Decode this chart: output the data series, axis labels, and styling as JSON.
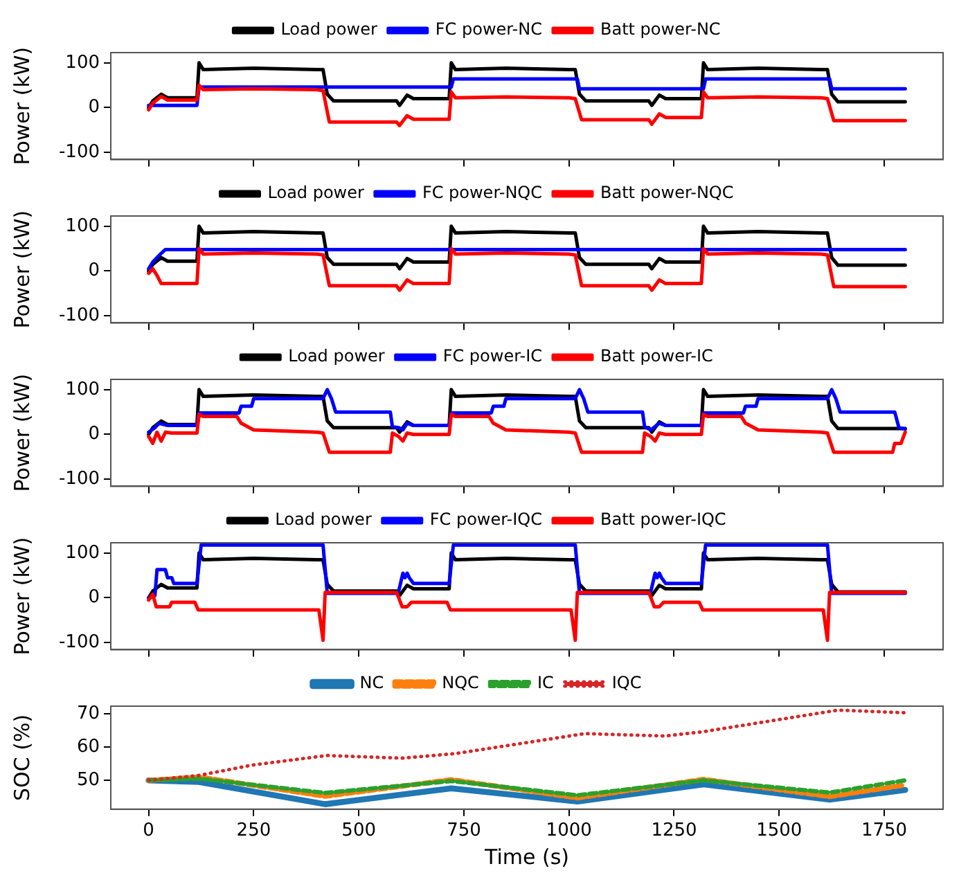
{
  "chart_data": [
    {
      "type": "line",
      "ylabel": "Power (kW)",
      "xlim": [
        -90,
        1890
      ],
      "xticks": [
        0,
        250,
        500,
        750,
        1000,
        1250,
        1500,
        1750
      ],
      "ylim": [
        -116,
        123
      ],
      "yticks": [
        -100,
        0,
        100
      ],
      "tick_labels": "y",
      "legend": "top",
      "series": [
        {
          "name": "Load power",
          "color": "#000000",
          "x": [
            0,
            10,
            30,
            45,
            115,
            120,
            130,
            250,
            400,
            415,
            425,
            440,
            590,
            597,
            615,
            630,
            715,
            720,
            730,
            850,
            1000,
            1015,
            1025,
            1040,
            1190,
            1197,
            1215,
            1230,
            1315,
            1320,
            1330,
            1450,
            1600,
            1615,
            1625,
            1640,
            1800
          ],
          "values": [
            0,
            15,
            30,
            22,
            22,
            100,
            85,
            88,
            85,
            85,
            30,
            15,
            15,
            5,
            28,
            20,
            20,
            100,
            85,
            88,
            85,
            85,
            30,
            15,
            15,
            5,
            28,
            20,
            20,
            100,
            85,
            88,
            85,
            85,
            30,
            13,
            13
          ]
        },
        {
          "name": "FC power-NC",
          "color": "#0000ff",
          "x": [
            0,
            115,
            120,
            720,
            725,
            1020,
            1025,
            1320,
            1325,
            1620,
            1625,
            1800
          ],
          "values": [
            5,
            5,
            46,
            46,
            64,
            64,
            42,
            42,
            64,
            64,
            42,
            42
          ]
        },
        {
          "name": "Batt power-NC",
          "color": "#ff0000",
          "x": [
            0,
            10,
            30,
            45,
            115,
            120,
            130,
            250,
            400,
            415,
            430,
            590,
            597,
            615,
            630,
            715,
            720,
            730,
            850,
            1000,
            1015,
            1030,
            1190,
            1197,
            1215,
            1230,
            1315,
            1320,
            1330,
            1450,
            1600,
            1615,
            1630,
            1800
          ],
          "values": [
            -5,
            10,
            25,
            17,
            17,
            50,
            40,
            42,
            40,
            38,
            -32,
            -32,
            -40,
            -18,
            -26,
            -26,
            35,
            22,
            24,
            22,
            20,
            -27,
            -27,
            -37,
            -14,
            -22,
            -22,
            35,
            22,
            24,
            22,
            20,
            -29,
            -29
          ]
        }
      ]
    },
    {
      "type": "line",
      "ylabel": "Power (kW)",
      "xlim": [
        -90,
        1890
      ],
      "xticks": [
        0,
        250,
        500,
        750,
        1000,
        1250,
        1500,
        1750
      ],
      "ylim": [
        -116,
        123
      ],
      "yticks": [
        -100,
        0,
        100
      ],
      "tick_labels": "y",
      "legend": "top",
      "series": [
        {
          "name": "Load power",
          "color": "#000000",
          "x": [
            0,
            10,
            30,
            45,
            115,
            120,
            130,
            250,
            400,
            415,
            425,
            440,
            590,
            597,
            615,
            630,
            715,
            720,
            730,
            850,
            1000,
            1015,
            1025,
            1040,
            1190,
            1197,
            1215,
            1230,
            1315,
            1320,
            1330,
            1450,
            1600,
            1615,
            1625,
            1640,
            1800
          ],
          "values": [
            0,
            15,
            30,
            22,
            22,
            100,
            85,
            88,
            85,
            85,
            30,
            15,
            15,
            5,
            28,
            20,
            20,
            100,
            85,
            88,
            85,
            85,
            30,
            15,
            15,
            5,
            28,
            20,
            20,
            100,
            85,
            88,
            85,
            85,
            30,
            13,
            13
          ]
        },
        {
          "name": "FC power-NQC",
          "color": "#0000ff",
          "x": [
            0,
            10,
            25,
            40,
            1800
          ],
          "values": [
            5,
            20,
            35,
            48,
            48
          ]
        },
        {
          "name": "Batt power-NQC",
          "color": "#ff0000",
          "x": [
            0,
            10,
            20,
            30,
            115,
            120,
            130,
            250,
            400,
            415,
            430,
            590,
            597,
            615,
            630,
            715,
            720,
            730,
            850,
            1000,
            1015,
            1030,
            1190,
            1197,
            1215,
            1230,
            1315,
            1320,
            1330,
            1450,
            1600,
            1615,
            1630,
            1800
          ],
          "values": [
            -5,
            5,
            -10,
            -28,
            -28,
            50,
            38,
            40,
            38,
            36,
            -33,
            -33,
            -43,
            -20,
            -28,
            -28,
            50,
            38,
            40,
            38,
            36,
            -33,
            -33,
            -43,
            -20,
            -28,
            -28,
            50,
            38,
            40,
            38,
            36,
            -35,
            -35
          ]
        }
      ]
    },
    {
      "type": "line",
      "ylabel": "Power (kW)",
      "xlim": [
        -90,
        1890
      ],
      "xticks": [
        0,
        250,
        500,
        750,
        1000,
        1250,
        1500,
        1750
      ],
      "ylim": [
        -116,
        123
      ],
      "yticks": [
        -100,
        0,
        100
      ],
      "tick_labels": "y",
      "legend": "top",
      "series": [
        {
          "name": "Load power",
          "color": "#000000",
          "x": [
            0,
            10,
            30,
            45,
            115,
            120,
            130,
            250,
            400,
            415,
            425,
            440,
            590,
            597,
            615,
            630,
            715,
            720,
            730,
            850,
            1000,
            1015,
            1025,
            1040,
            1190,
            1197,
            1215,
            1230,
            1315,
            1320,
            1330,
            1450,
            1600,
            1615,
            1625,
            1640,
            1800
          ],
          "values": [
            0,
            15,
            30,
            22,
            22,
            100,
            85,
            88,
            85,
            85,
            30,
            15,
            15,
            5,
            28,
            20,
            20,
            100,
            85,
            88,
            85,
            85,
            30,
            15,
            15,
            5,
            28,
            20,
            20,
            100,
            85,
            88,
            85,
            85,
            30,
            13,
            13
          ]
        },
        {
          "name": "FC power-IC",
          "color": "#0000ff",
          "x": [
            0,
            15,
            25,
            45,
            115,
            120,
            215,
            220,
            245,
            250,
            415,
            425,
            435,
            445,
            575,
            580,
            595,
            605,
            615,
            630,
            715,
            720,
            815,
            820,
            845,
            850,
            1015,
            1025,
            1035,
            1045,
            1175,
            1180,
            1195,
            1215,
            1230,
            1315,
            1320,
            1415,
            1420,
            1445,
            1450,
            1615,
            1625,
            1635,
            1645,
            1775,
            1785,
            1800
          ],
          "values": [
            5,
            15,
            25,
            20,
            20,
            48,
            48,
            63,
            63,
            80,
            80,
            100,
            80,
            50,
            50,
            17,
            15,
            10,
            25,
            20,
            20,
            48,
            48,
            63,
            63,
            80,
            80,
            100,
            80,
            50,
            50,
            17,
            10,
            25,
            20,
            20,
            48,
            48,
            63,
            63,
            80,
            80,
            100,
            80,
            50,
            50,
            15,
            12
          ]
        },
        {
          "name": "Batt power-IC",
          "color": "#ff0000",
          "x": [
            0,
            10,
            20,
            30,
            40,
            55,
            115,
            120,
            130,
            210,
            220,
            250,
            400,
            415,
            430,
            575,
            580,
            595,
            605,
            615,
            630,
            715,
            720,
            730,
            810,
            820,
            850,
            1000,
            1015,
            1030,
            1175,
            1180,
            1195,
            1205,
            1215,
            1230,
            1315,
            1320,
            1330,
            1410,
            1420,
            1450,
            1600,
            1615,
            1630,
            1770,
            1775,
            1790,
            1800
          ],
          "values": [
            -5,
            -20,
            5,
            -15,
            5,
            3,
            3,
            45,
            40,
            40,
            25,
            10,
            5,
            3,
            -40,
            -40,
            3,
            -5,
            -15,
            3,
            0,
            0,
            45,
            40,
            40,
            25,
            10,
            5,
            3,
            -40,
            -40,
            3,
            -5,
            -15,
            3,
            0,
            0,
            45,
            40,
            40,
            25,
            10,
            5,
            3,
            -40,
            -40,
            -20,
            -20,
            5
          ]
        }
      ]
    },
    {
      "type": "line",
      "ylabel": "Power (kW)",
      "xlim": [
        -90,
        1890
      ],
      "xticks": [
        0,
        250,
        500,
        750,
        1000,
        1250,
        1500,
        1750
      ],
      "ylim": [
        -116,
        123
      ],
      "yticks": [
        -100,
        0,
        100
      ],
      "tick_labels": "y",
      "legend": "top",
      "series": [
        {
          "name": "Load power",
          "color": "#000000",
          "x": [
            0,
            10,
            30,
            45,
            115,
            120,
            130,
            250,
            400,
            415,
            425,
            440,
            590,
            597,
            615,
            630,
            715,
            720,
            730,
            850,
            1000,
            1015,
            1025,
            1040,
            1190,
            1197,
            1215,
            1230,
            1315,
            1320,
            1330,
            1450,
            1600,
            1615,
            1625,
            1640,
            1800
          ],
          "values": [
            0,
            15,
            30,
            22,
            22,
            100,
            85,
            88,
            85,
            85,
            30,
            15,
            15,
            5,
            28,
            20,
            20,
            100,
            85,
            88,
            85,
            85,
            30,
            15,
            15,
            5,
            28,
            20,
            20,
            100,
            85,
            88,
            85,
            85,
            30,
            13,
            13
          ]
        },
        {
          "name": "FC power-IQC",
          "color": "#0000ff",
          "x": [
            0,
            15,
            20,
            40,
            45,
            55,
            60,
            115,
            125,
            415,
            425,
            590,
            595,
            605,
            610,
            615,
            620,
            630,
            715,
            725,
            1015,
            1025,
            1190,
            1195,
            1205,
            1210,
            1215,
            1220,
            1230,
            1315,
            1325,
            1615,
            1625,
            1800
          ],
          "values": [
            0,
            5,
            63,
            63,
            45,
            45,
            32,
            32,
            118,
            118,
            10,
            10,
            15,
            55,
            45,
            55,
            45,
            32,
            32,
            118,
            118,
            10,
            10,
            15,
            55,
            45,
            55,
            45,
            32,
            32,
            118,
            118,
            10,
            10
          ]
        },
        {
          "name": "Batt power-IQC",
          "color": "#ff0000",
          "x": [
            0,
            10,
            18,
            50,
            55,
            110,
            118,
            405,
            415,
            420,
            590,
            597,
            603,
            615,
            625,
            710,
            718,
            1005,
            1015,
            1020,
            1190,
            1197,
            1203,
            1215,
            1225,
            1310,
            1318,
            1605,
            1615,
            1620,
            1800
          ],
          "values": [
            -5,
            8,
            -20,
            -20,
            -10,
            -10,
            -27,
            -27,
            -95,
            12,
            12,
            -5,
            -20,
            -20,
            -10,
            -10,
            -27,
            -27,
            -95,
            12,
            12,
            -5,
            -20,
            -20,
            -10,
            -10,
            -27,
            -27,
            -95,
            12,
            12
          ]
        }
      ]
    },
    {
      "type": "line",
      "xlabel": "Time (s)",
      "ylabel": "SOC (%)",
      "xlim": [
        -90,
        1890
      ],
      "xticks": [
        0,
        250,
        500,
        750,
        1000,
        1250,
        1500,
        1750
      ],
      "ylim": [
        41.3,
        72.4
      ],
      "yticks": [
        50,
        60,
        70
      ],
      "legend": "top",
      "series": [
        {
          "name": "NC",
          "color": "#1f77b4",
          "line_style": "solid",
          "x": [
            0,
            120,
            420,
            720,
            1020,
            1320,
            1620,
            1800
          ],
          "values": [
            50,
            49.5,
            42.8,
            47.6,
            43.6,
            48.8,
            44.2,
            47.1
          ]
        },
        {
          "name": "NQC",
          "color": "#ff7f0e",
          "line_style": "dashed",
          "x": [
            0,
            120,
            420,
            720,
            1020,
            1320,
            1620,
            1800
          ],
          "values": [
            50,
            51,
            45.2,
            50.2,
            44.7,
            50.3,
            45.1,
            48.6
          ]
        },
        {
          "name": "IC",
          "color": "#2ca02c",
          "line_style": "dashed",
          "x": [
            0,
            120,
            420,
            720,
            1020,
            1320,
            1620,
            1800
          ],
          "values": [
            50,
            50.5,
            46.2,
            49.8,
            45.5,
            50,
            46.3,
            50
          ]
        },
        {
          "name": "IQC",
          "color": "#d62728",
          "line_style": "dotted",
          "x": [
            0,
            120,
            246,
            424,
            603,
            731,
            1037,
            1230,
            1320,
            1640,
            1800
          ],
          "values": [
            50,
            51.5,
            54.6,
            57.5,
            56.7,
            58.1,
            64.1,
            63.4,
            64.7,
            71.2,
            70.4
          ]
        }
      ]
    }
  ]
}
